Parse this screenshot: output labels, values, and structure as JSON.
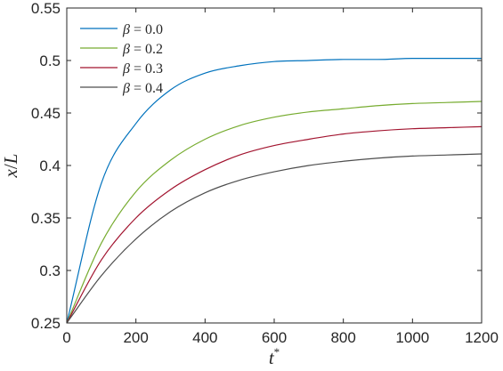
{
  "chart_data": {
    "type": "line",
    "title": "",
    "xlabel": "t*",
    "ylabel": "x/L",
    "xlim": [
      0,
      1200
    ],
    "ylim": [
      0.25,
      0.55
    ],
    "xticks": [
      0,
      200,
      400,
      600,
      800,
      1000,
      1200
    ],
    "yticks": [
      0.25,
      0.3,
      0.35,
      0.4,
      0.45,
      0.5,
      0.55
    ],
    "xtick_labels": [
      "0",
      "200",
      "400",
      "600",
      "800",
      "1000",
      "1200"
    ],
    "ytick_labels": [
      "0.25",
      "0.3",
      "0.35",
      "0.4",
      "0.45",
      "0.5",
      "0.55"
    ],
    "grid": false,
    "legend_position": "top-left",
    "x": [
      0,
      100,
      200,
      300,
      400,
      500,
      600,
      700,
      800,
      900,
      1000,
      1100,
      1200
    ],
    "series": [
      {
        "name": "β = 0.0",
        "color": "#0072BD",
        "values": [
          0.25,
          0.383,
          0.44,
          0.472,
          0.488,
          0.495,
          0.499,
          0.5,
          0.501,
          0.501,
          0.502,
          0.502,
          0.502
        ]
      },
      {
        "name": "β = 0.2",
        "color": "#77AC30",
        "values": [
          0.25,
          0.326,
          0.375,
          0.405,
          0.425,
          0.438,
          0.446,
          0.451,
          0.454,
          0.457,
          0.459,
          0.46,
          0.461
        ]
      },
      {
        "name": "β = 0.3",
        "color": "#A2142F",
        "values": [
          0.25,
          0.31,
          0.35,
          0.377,
          0.396,
          0.41,
          0.419,
          0.425,
          0.43,
          0.433,
          0.435,
          0.436,
          0.437
        ]
      },
      {
        "name": "β = 0.4",
        "color": "#4D4D4D",
        "values": [
          0.25,
          0.295,
          0.33,
          0.356,
          0.374,
          0.386,
          0.394,
          0.4,
          0.404,
          0.407,
          0.409,
          0.41,
          0.411
        ]
      }
    ],
    "legend": [
      {
        "symbol": "β",
        "op": "=",
        "value": "0.0"
      },
      {
        "symbol": "β",
        "op": "=",
        "value": "0.2"
      },
      {
        "symbol": "β",
        "op": "=",
        "value": "0.3"
      },
      {
        "symbol": "β",
        "op": "=",
        "value": "0.4"
      }
    ]
  }
}
